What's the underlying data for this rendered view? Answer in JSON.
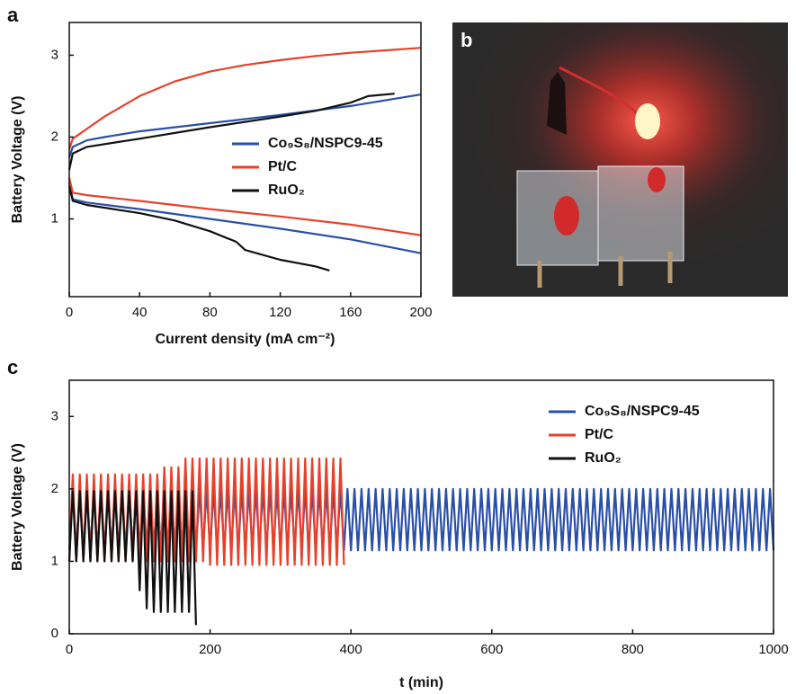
{
  "chart_data": [
    {
      "type": "line",
      "panel_label": "a",
      "xlabel": "Current density (mA cm⁻²)",
      "ylabel": "Battery Voltage (V)",
      "xlim": [
        0,
        200
      ],
      "xticks": [
        0,
        40,
        80,
        120,
        160,
        200
      ],
      "ylim": [
        0.05,
        3.4
      ],
      "yticks": [
        1,
        2,
        3
      ],
      "series": [
        {
          "name": "Co₉S₈/NSPC9-45",
          "color": "#2a4fa8",
          "x": [
            0,
            2,
            10,
            20,
            40,
            80,
            120,
            160,
            200,
            null,
            0,
            2,
            10,
            40,
            80,
            120,
            160,
            200
          ],
          "values": [
            1.75,
            1.88,
            1.96,
            2.0,
            2.07,
            2.17,
            2.27,
            2.38,
            2.52,
            null,
            1.45,
            1.24,
            1.2,
            1.12,
            1.0,
            0.88,
            0.75,
            0.58
          ]
        },
        {
          "name": "Pt/C",
          "color": "#e8402a",
          "x": [
            0,
            2,
            10,
            20,
            40,
            60,
            80,
            100,
            120,
            140,
            160,
            180,
            200,
            null,
            0,
            2,
            10,
            40,
            80,
            120,
            160,
            200
          ],
          "values": [
            1.85,
            1.98,
            2.1,
            2.25,
            2.5,
            2.68,
            2.8,
            2.88,
            2.94,
            2.99,
            3.03,
            3.06,
            3.09,
            null,
            1.5,
            1.32,
            1.29,
            1.22,
            1.12,
            1.03,
            0.93,
            0.8
          ]
        },
        {
          "name": "RuO₂",
          "color": "#111111",
          "x": [
            0,
            2,
            10,
            40,
            80,
            120,
            140,
            160,
            170,
            185,
            null,
            0,
            2,
            10,
            40,
            60,
            80,
            95,
            100,
            120,
            140,
            148
          ],
          "values": [
            1.6,
            1.8,
            1.88,
            1.98,
            2.12,
            2.25,
            2.32,
            2.42,
            2.5,
            2.53,
            null,
            1.4,
            1.22,
            1.17,
            1.07,
            0.98,
            0.85,
            0.72,
            0.62,
            0.5,
            0.42,
            0.37
          ]
        }
      ]
    },
    {
      "type": "image",
      "panel_label": "b"
    },
    {
      "type": "line",
      "panel_label": "c",
      "xlabel": "t (min)",
      "ylabel": "Battery Voltage (V)",
      "xlim": [
        0,
        1000
      ],
      "xticks": [
        0,
        200,
        400,
        600,
        800,
        1000
      ],
      "ylim": [
        0,
        3.5
      ],
      "yticks": [
        0,
        1,
        2,
        3
      ],
      "series": [
        {
          "name": "Co₉S₈/NSPC9-45",
          "color": "#2a4fa8",
          "x": [
            0,
            5,
            10,
            15,
            20,
            25,
            30,
            35,
            40,
            45,
            50,
            55,
            60,
            65,
            70,
            75,
            80,
            85,
            90,
            95,
            100,
            105,
            110,
            115,
            120,
            125,
            130,
            135,
            140,
            145,
            150,
            155,
            160,
            165,
            170,
            175,
            180,
            185,
            190,
            195,
            200,
            205,
            210,
            215,
            220,
            225,
            230,
            235,
            240,
            245,
            250,
            255,
            260,
            265,
            270,
            275,
            280,
            285,
            290,
            295,
            300,
            305,
            310,
            315,
            320,
            325,
            330,
            335,
            340,
            345,
            350,
            355,
            360,
            365,
            370,
            375,
            380,
            385,
            390,
            395,
            400,
            405,
            410,
            415,
            420,
            425,
            430,
            435,
            440,
            445,
            450,
            455,
            460,
            465,
            470,
            475,
            480,
            485,
            490,
            495,
            500,
            505,
            510,
            515,
            520,
            525,
            530,
            535,
            540,
            545,
            550,
            555,
            560,
            565,
            570,
            575,
            580,
            585,
            590,
            595,
            600,
            605,
            610,
            615,
            620,
            625,
            630,
            635,
            640,
            645,
            650,
            655,
            660,
            665,
            670,
            675,
            680,
            685,
            690,
            695,
            700,
            705,
            710,
            715,
            720,
            725,
            730,
            735,
            740,
            745,
            750,
            755,
            760,
            765,
            770,
            775,
            780,
            785,
            790,
            795,
            800,
            805,
            810,
            815,
            820,
            825,
            830,
            835,
            840,
            845,
            850,
            855,
            860,
            865,
            870,
            875,
            880,
            885,
            890,
            895,
            900,
            905,
            910,
            915,
            920,
            925,
            930,
            935,
            940,
            945,
            950,
            955,
            960,
            965,
            970,
            975,
            980,
            985,
            990,
            995,
            1000
          ],
          "values": [
            1.15,
            2.0,
            1.15,
            2.0,
            1.15,
            2.0,
            1.15,
            2.0,
            1.15,
            2.0,
            1.15,
            2.0,
            1.15,
            2.0,
            1.15,
            2.0,
            1.15,
            2.0,
            1.15,
            2.0,
            1.15,
            2.0,
            1.15,
            2.0,
            1.15,
            2.0,
            1.15,
            2.0,
            1.15,
            2.0,
            1.15,
            2.0,
            1.15,
            2.0,
            1.15,
            2.0,
            1.15,
            2.0,
            1.15,
            2.0,
            1.15,
            2.0,
            1.15,
            2.0,
            1.15,
            2.0,
            1.15,
            2.0,
            1.15,
            2.0,
            1.15,
            2.0,
            1.15,
            2.0,
            1.15,
            2.0,
            1.15,
            2.0,
            1.15,
            2.0,
            1.15,
            2.0,
            1.15,
            2.0,
            1.15,
            2.0,
            1.15,
            2.0,
            1.15,
            2.0,
            1.15,
            2.0,
            1.15,
            2.0,
            1.15,
            2.0,
            1.15,
            2.0,
            1.15,
            2.0,
            1.15,
            2.0,
            1.15,
            2.0,
            1.15,
            2.0,
            1.15,
            2.0,
            1.15,
            2.0,
            1.15,
            2.0,
            1.15,
            2.0,
            1.15,
            2.0,
            1.15,
            2.0,
            1.15,
            2.0,
            1.15,
            2.0,
            1.15,
            2.0,
            1.15,
            2.0,
            1.15,
            2.0,
            1.15,
            2.0,
            1.15,
            2.0,
            1.15,
            2.0,
            1.15,
            2.0,
            1.15,
            2.0,
            1.15,
            2.0,
            1.15,
            2.0,
            1.15,
            2.0,
            1.15,
            2.0,
            1.15,
            2.0,
            1.15,
            2.0,
            1.15,
            2.0,
            1.15,
            2.0,
            1.15,
            2.0,
            1.15,
            2.0,
            1.15,
            2.0,
            1.15,
            2.0,
            1.15,
            2.0,
            1.15,
            2.0,
            1.15,
            2.0,
            1.15,
            2.0,
            1.15,
            2.0,
            1.15,
            2.0,
            1.15,
            2.0,
            1.15,
            2.0,
            1.15,
            2.0,
            1.15,
            2.0,
            1.15,
            2.0,
            1.15,
            2.0,
            1.15,
            2.0,
            1.15,
            2.0,
            1.15,
            2.0,
            1.15,
            2.0,
            1.15,
            2.0,
            1.15,
            2.0,
            1.15,
            2.0,
            1.15,
            2.0,
            1.15,
            2.0,
            1.15,
            2.0,
            1.15,
            2.0,
            1.15,
            2.0,
            1.15,
            2.0,
            1.15,
            2.0,
            1.15,
            2.0,
            1.15,
            2.0,
            1.15,
            2.0,
            1.15
          ]
        },
        {
          "name": "Pt/C",
          "color": "#e8402a",
          "x": [
            0,
            5,
            10,
            15,
            20,
            25,
            30,
            35,
            40,
            45,
            50,
            55,
            60,
            65,
            70,
            75,
            80,
            85,
            90,
            95,
            100,
            105,
            110,
            115,
            120,
            125,
            130,
            135,
            140,
            145,
            150,
            155,
            160,
            165,
            170,
            175,
            180,
            185,
            190,
            195,
            200,
            205,
            210,
            215,
            220,
            225,
            230,
            235,
            240,
            245,
            250,
            255,
            260,
            265,
            270,
            275,
            280,
            285,
            290,
            295,
            300,
            305,
            310,
            315,
            320,
            325,
            330,
            335,
            340,
            345,
            350,
            355,
            360,
            365,
            370,
            375,
            380,
            385,
            390
          ],
          "values": [
            1.0,
            2.2,
            1.0,
            2.2,
            1.0,
            2.2,
            1.0,
            2.2,
            1.0,
            2.2,
            1.0,
            2.2,
            1.0,
            2.2,
            1.0,
            2.2,
            1.0,
            2.2,
            1.0,
            2.2,
            1.0,
            2.2,
            1.0,
            2.2,
            1.0,
            2.2,
            1.0,
            2.3,
            1.0,
            2.3,
            1.0,
            2.3,
            1.0,
            2.42,
            1.0,
            2.42,
            1.0,
            2.42,
            1.0,
            2.42,
            0.95,
            2.42,
            0.95,
            2.42,
            0.95,
            2.42,
            0.95,
            2.42,
            0.95,
            2.42,
            0.95,
            2.42,
            0.95,
            2.42,
            0.95,
            2.42,
            0.95,
            2.42,
            0.95,
            2.42,
            0.95,
            2.42,
            0.95,
            2.42,
            0.95,
            2.42,
            0.95,
            2.42,
            0.95,
            2.42,
            0.95,
            2.42,
            0.95,
            2.42,
            0.95,
            2.42,
            0.95,
            2.42,
            0.95
          ]
        },
        {
          "name": "RuO₂",
          "color": "#111111",
          "x": [
            0,
            5,
            10,
            15,
            20,
            25,
            30,
            35,
            40,
            45,
            50,
            55,
            60,
            65,
            70,
            75,
            80,
            85,
            90,
            95,
            100,
            105,
            110,
            115,
            120,
            125,
            130,
            135,
            140,
            145,
            150,
            155,
            160,
            165,
            170,
            175,
            180
          ],
          "values": [
            1.0,
            1.97,
            1.0,
            1.97,
            1.0,
            1.97,
            1.0,
            1.97,
            1.0,
            1.97,
            1.0,
            1.97,
            1.0,
            1.97,
            1.0,
            1.97,
            1.0,
            1.97,
            1.0,
            1.97,
            0.6,
            1.97,
            0.35,
            1.97,
            0.3,
            1.97,
            0.3,
            1.97,
            0.3,
            1.97,
            0.3,
            1.97,
            0.3,
            1.97,
            0.3,
            1.97,
            0.12
          ]
        }
      ]
    }
  ]
}
